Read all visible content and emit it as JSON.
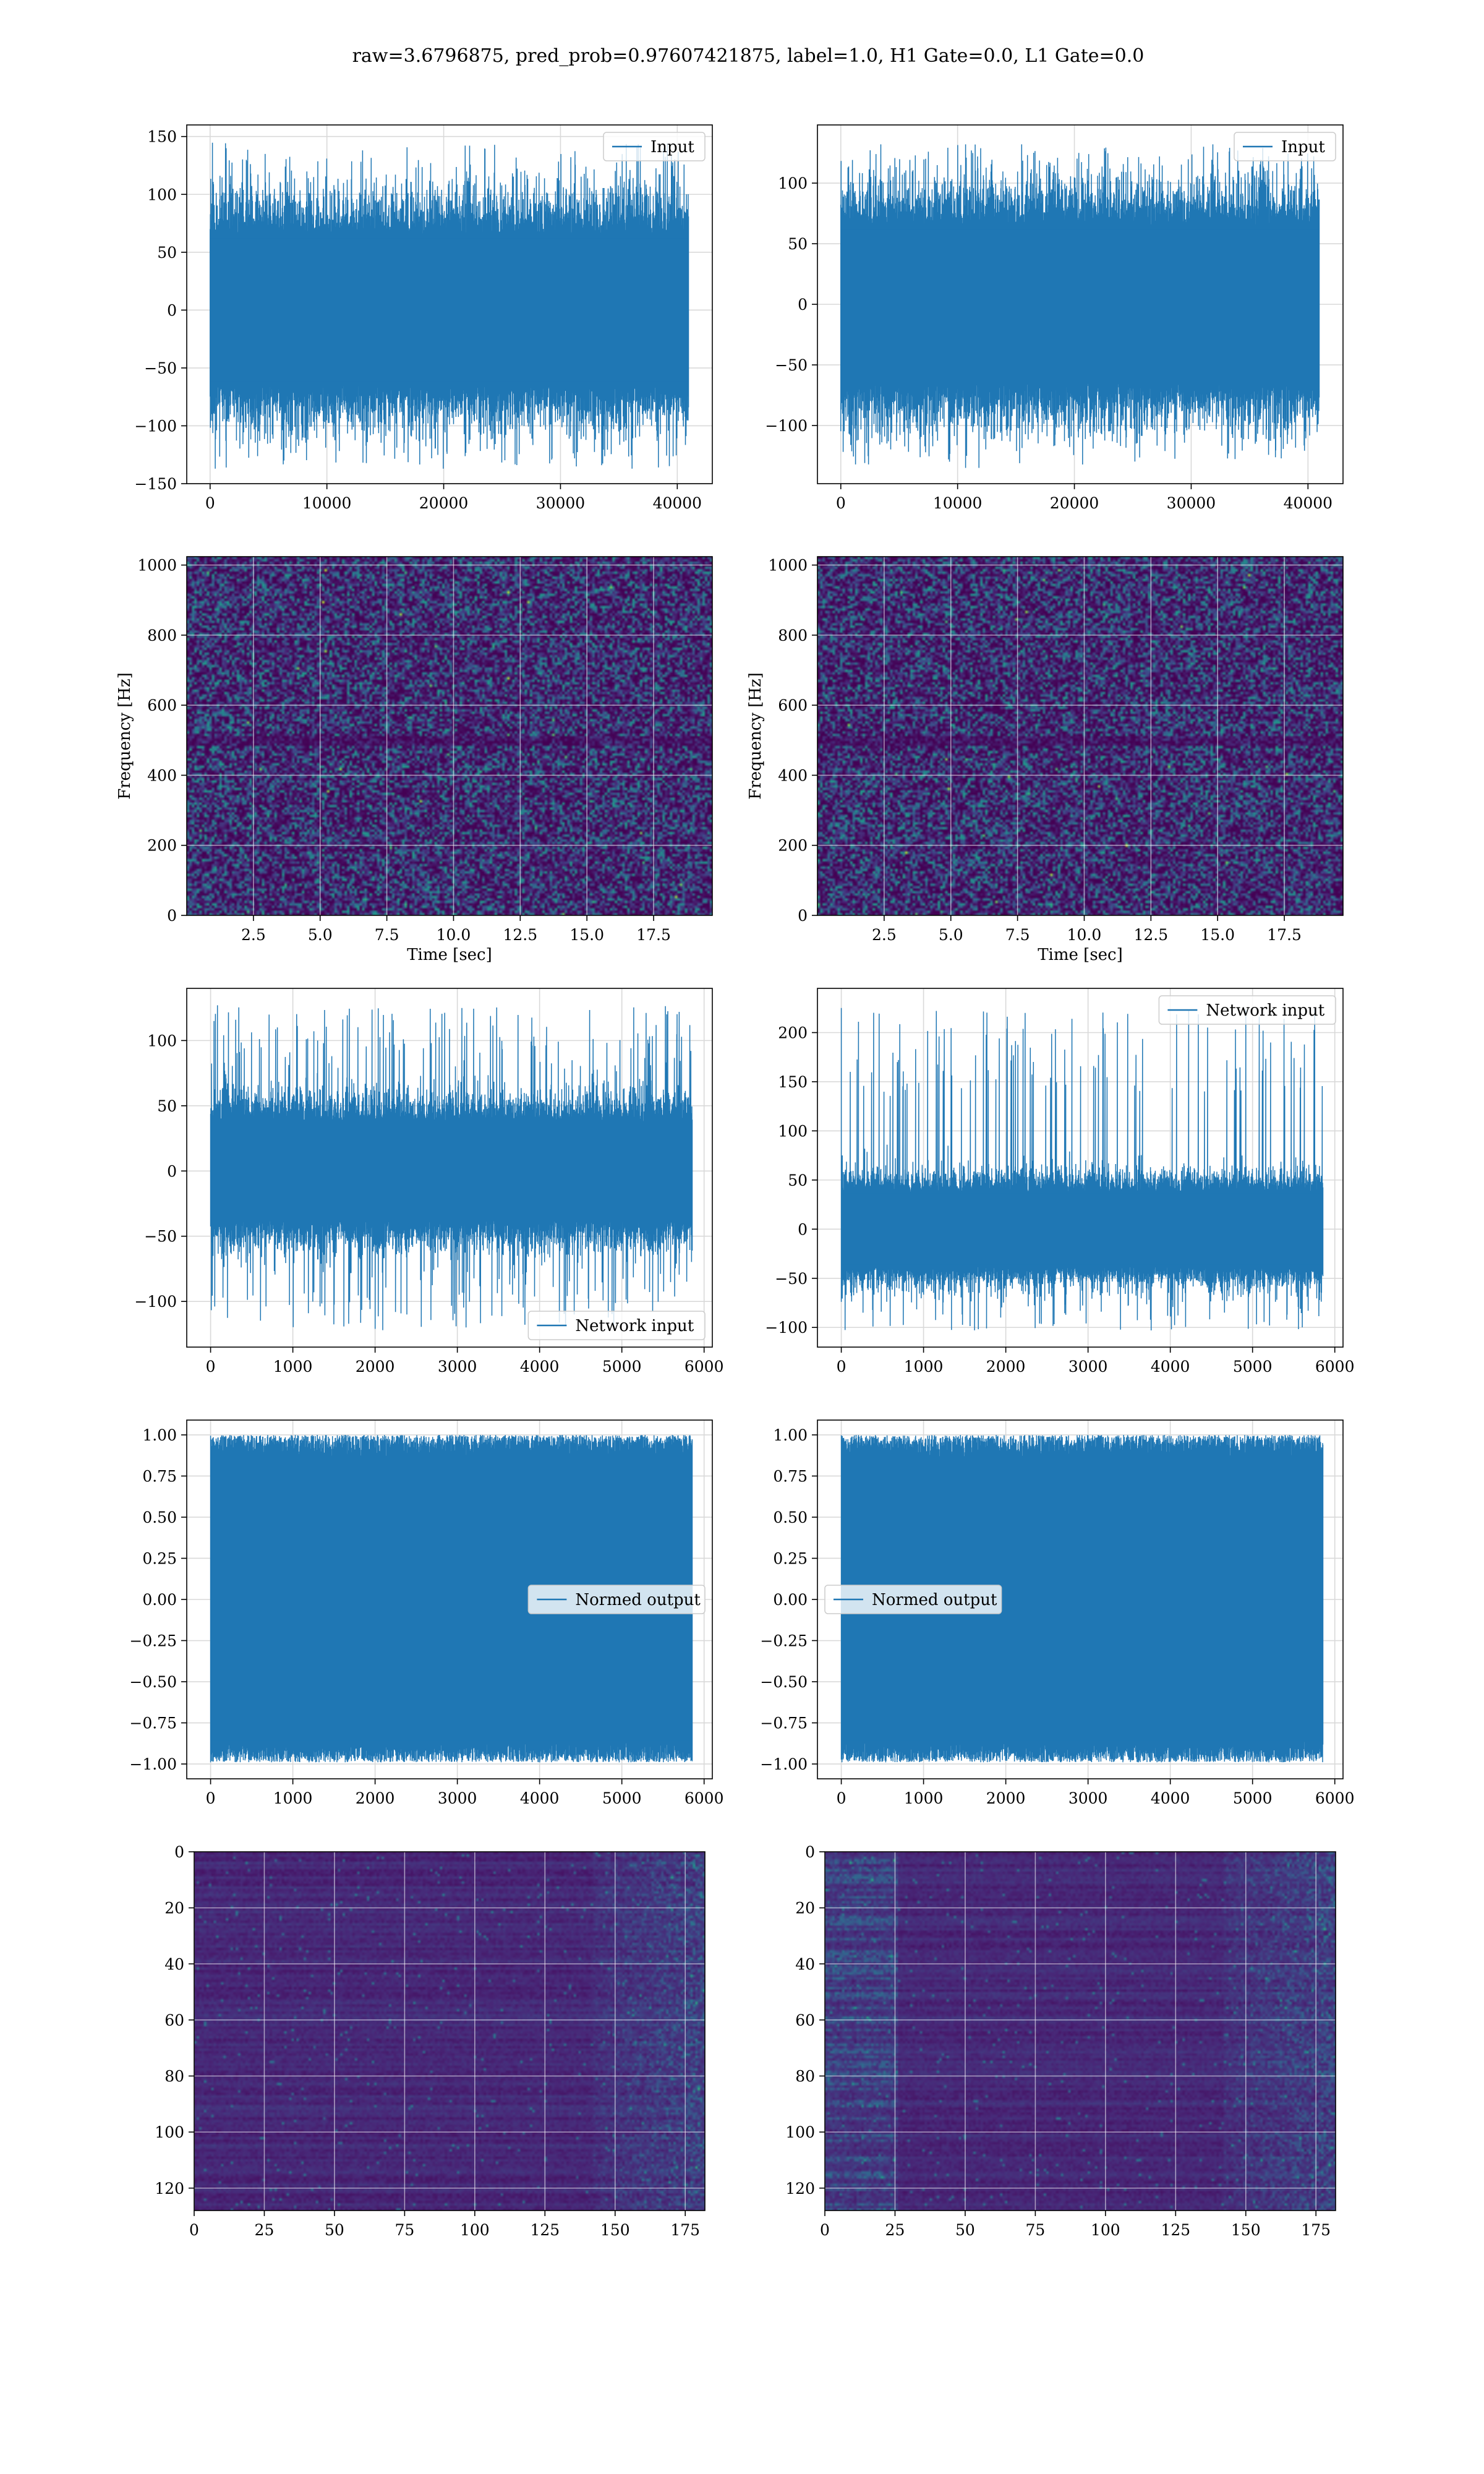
{
  "figure_title": "raw=3.6796875, pred_prob=0.97607421875, label=1.0, H1 Gate=0.0, L1 Gate=0.0",
  "colors": {
    "line": "#1f77b4",
    "grid": "#d9d9d9",
    "viridis_low": "#440154",
    "viridis_mid": "#21918c",
    "viridis_high": "#fde725"
  },
  "chart_data": [
    {
      "id": "input-h1",
      "type": "line",
      "legend": [
        "Input"
      ],
      "legend_loc": "upper right",
      "xlim": [
        -2000,
        43000
      ],
      "ylim": [
        -150,
        160
      ],
      "xticks": [
        0,
        10000,
        20000,
        30000,
        40000
      ],
      "yticks": [
        -150,
        -100,
        -50,
        0,
        50,
        100,
        150
      ],
      "xticklabels": [
        "0",
        "10000",
        "20000",
        "30000",
        "40000"
      ],
      "yticklabels": [
        "−150",
        "−100",
        "−50",
        "0",
        "50",
        "100",
        "150"
      ],
      "xlabel": "",
      "ylabel": "",
      "grid": true,
      "data": {
        "n_samples": 40960,
        "x_range": [
          0,
          40960
        ],
        "band": [
          -65,
          65
        ],
        "peak_range": [
          -137,
          145
        ]
      }
    },
    {
      "id": "input-l1",
      "type": "line",
      "legend": [
        "Input"
      ],
      "legend_loc": "upper right",
      "xlim": [
        -2000,
        43000
      ],
      "ylim": [
        -148,
        148
      ],
      "xticks": [
        0,
        10000,
        20000,
        30000,
        40000
      ],
      "yticks": [
        -100,
        -50,
        0,
        50,
        100
      ],
      "xticklabels": [
        "0",
        "10000",
        "20000",
        "30000",
        "40000"
      ],
      "yticklabels": [
        "−100",
        "−50",
        "0",
        "50",
        "100"
      ],
      "xlabel": "",
      "ylabel": "",
      "grid": true,
      "data": {
        "n_samples": 40960,
        "x_range": [
          0,
          40960
        ],
        "band": [
          -65,
          65
        ],
        "peak_range": [
          -135,
          132
        ]
      }
    },
    {
      "id": "spectrogram-h1",
      "type": "heatmap",
      "xlim": [
        0,
        19.7
      ],
      "ylim": [
        0,
        1024
      ],
      "xticks": [
        2.5,
        5.0,
        7.5,
        10.0,
        12.5,
        15.0,
        17.5
      ],
      "yticks": [
        0,
        200,
        400,
        600,
        800,
        1000
      ],
      "xticklabels": [
        "2.5",
        "5.0",
        "7.5",
        "10.0",
        "12.5",
        "15.0",
        "17.5"
      ],
      "yticklabels": [
        "0",
        "200",
        "400",
        "600",
        "800",
        "1000"
      ],
      "xlabel": "Time [sec]",
      "ylabel": "Frequency [Hz]",
      "grid": true,
      "colormap": "viridis"
    },
    {
      "id": "spectrogram-l1",
      "type": "heatmap",
      "xlim": [
        0,
        19.7
      ],
      "ylim": [
        0,
        1024
      ],
      "xticks": [
        2.5,
        5.0,
        7.5,
        10.0,
        12.5,
        15.0,
        17.5
      ],
      "yticks": [
        0,
        200,
        400,
        600,
        800,
        1000
      ],
      "xticklabels": [
        "2.5",
        "5.0",
        "7.5",
        "10.0",
        "12.5",
        "15.0",
        "17.5"
      ],
      "yticklabels": [
        "0",
        "200",
        "400",
        "600",
        "800",
        "1000"
      ],
      "xlabel": "Time [sec]",
      "ylabel": "Frequency [Hz]",
      "grid": true,
      "colormap": "viridis"
    },
    {
      "id": "network-input-h1",
      "type": "line",
      "legend": [
        "Network input"
      ],
      "legend_loc": "lower right",
      "xlim": [
        -290,
        6100
      ],
      "ylim": [
        -135,
        140
      ],
      "xticks": [
        0,
        1000,
        2000,
        3000,
        4000,
        5000,
        6000
      ],
      "yticks": [
        -100,
        -50,
        0,
        50,
        100
      ],
      "xticklabels": [
        "0",
        "1000",
        "2000",
        "3000",
        "4000",
        "5000",
        "6000"
      ],
      "yticklabels": [
        "−100",
        "−50",
        "0",
        "50",
        "100"
      ],
      "xlabel": "",
      "ylabel": "",
      "grid": true,
      "data": {
        "n_samples": 5856,
        "x_range": [
          0,
          5856
        ],
        "band": [
          -38,
          38
        ],
        "peak_range": [
          -122,
          127
        ]
      }
    },
    {
      "id": "network-input-l1",
      "type": "line",
      "legend": [
        "Network input"
      ],
      "legend_loc": "upper right",
      "xlim": [
        -290,
        6100
      ],
      "ylim": [
        -120,
        245
      ],
      "xticks": [
        0,
        1000,
        2000,
        3000,
        4000,
        5000,
        6000
      ],
      "yticks": [
        -100,
        -50,
        0,
        50,
        100,
        150,
        200
      ],
      "xticklabels": [
        "0",
        "1000",
        "2000",
        "3000",
        "4000",
        "5000",
        "6000"
      ],
      "yticklabels": [
        "−100",
        "−50",
        "0",
        "50",
        "100",
        "150",
        "200"
      ],
      "xlabel": "",
      "ylabel": "",
      "grid": true,
      "data": {
        "n_samples": 5856,
        "x_range": [
          0,
          5856
        ],
        "band": [
          -38,
          38
        ],
        "peak_range": [
          -103,
          225
        ]
      }
    },
    {
      "id": "normed-output-h1",
      "type": "line",
      "legend": [
        "Normed output"
      ],
      "legend_loc": "center right",
      "xlim": [
        -290,
        6100
      ],
      "ylim": [
        -1.09,
        1.09
      ],
      "xticks": [
        0,
        1000,
        2000,
        3000,
        4000,
        5000,
        6000
      ],
      "yticks": [
        -1.0,
        -0.75,
        -0.5,
        -0.25,
        0.0,
        0.25,
        0.5,
        0.75,
        1.0
      ],
      "xticklabels": [
        "0",
        "1000",
        "2000",
        "3000",
        "4000",
        "5000",
        "6000"
      ],
      "yticklabels": [
        "−1.00",
        "−0.75",
        "−0.50",
        "−0.25",
        "0.00",
        "0.25",
        "0.50",
        "0.75",
        "1.00"
      ],
      "xlabel": "",
      "ylabel": "",
      "grid": true,
      "data": {
        "n_samples": 5856,
        "x_range": [
          0,
          5856
        ],
        "band": [
          -0.88,
          0.88
        ],
        "peak_range": [
          -0.99,
          1.0
        ]
      }
    },
    {
      "id": "normed-output-l1",
      "type": "line",
      "legend": [
        "Normed output"
      ],
      "legend_loc": "center left",
      "xlim": [
        -290,
        6100
      ],
      "ylim": [
        -1.09,
        1.09
      ],
      "xticks": [
        0,
        1000,
        2000,
        3000,
        4000,
        5000,
        6000
      ],
      "yticks": [
        -1.0,
        -0.75,
        -0.5,
        -0.25,
        0.0,
        0.25,
        0.5,
        0.75,
        1.0
      ],
      "xticklabels": [
        "0",
        "1000",
        "2000",
        "3000",
        "4000",
        "5000",
        "6000"
      ],
      "yticklabels": [
        "−1.00",
        "−0.75",
        "−0.50",
        "−0.25",
        "0.00",
        "0.25",
        "0.50",
        "0.75",
        "1.00"
      ],
      "xlabel": "",
      "ylabel": "",
      "grid": true,
      "data": {
        "n_samples": 5856,
        "x_range": [
          0,
          5856
        ],
        "band": [
          -0.88,
          0.88
        ],
        "peak_range": [
          -0.99,
          1.0
        ]
      }
    },
    {
      "id": "feature-map-h1",
      "type": "heatmap",
      "xlim": [
        0,
        182
      ],
      "ylim": [
        128,
        0
      ],
      "xticks": [
        0,
        25,
        50,
        75,
        100,
        125,
        150,
        175
      ],
      "yticks": [
        0,
        20,
        40,
        60,
        80,
        100,
        120
      ],
      "xticklabels": [
        "0",
        "25",
        "50",
        "75",
        "100",
        "125",
        "150",
        "175"
      ],
      "yticklabels": [
        "0",
        "20",
        "40",
        "60",
        "80",
        "100",
        "120"
      ],
      "xlabel": "",
      "ylabel": "",
      "grid": true,
      "colormap": "viridis"
    },
    {
      "id": "feature-map-l1",
      "type": "heatmap",
      "xlim": [
        0,
        182
      ],
      "ylim": [
        128,
        0
      ],
      "xticks": [
        0,
        25,
        50,
        75,
        100,
        125,
        150,
        175
      ],
      "yticks": [
        0,
        20,
        40,
        60,
        80,
        100,
        120
      ],
      "xticklabels": [
        "0",
        "25",
        "50",
        "75",
        "100",
        "125",
        "150",
        "175"
      ],
      "yticklabels": [
        "0",
        "20",
        "40",
        "60",
        "80",
        "100",
        "120"
      ],
      "xlabel": "",
      "ylabel": "",
      "grid": true,
      "colormap": "viridis"
    }
  ]
}
